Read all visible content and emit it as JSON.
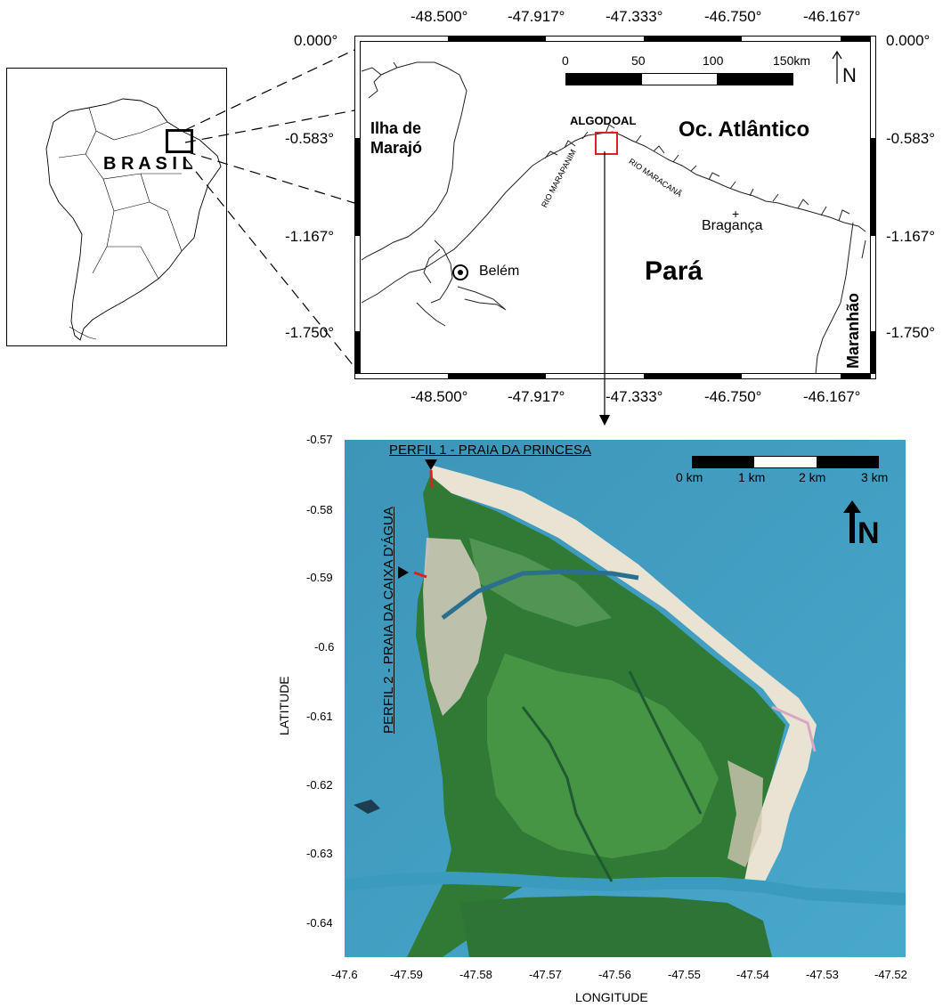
{
  "inset_map": {
    "country_label": "B R A S I L"
  },
  "regional_map": {
    "top_lon_labels": [
      "-48.500°",
      "-47.917°",
      "-47.333°",
      "-46.750°",
      "-46.167°"
    ],
    "bottom_lon_labels": [
      "-48.500°",
      "-47.917°",
      "-47.333°",
      "-46.750°",
      "-46.167°"
    ],
    "left_lat_labels": [
      "0.000°",
      "-0.583°",
      "-1.167°",
      "-1.750°"
    ],
    "right_lat_labels": [
      "0.000°",
      "-0.583°",
      "-1.167°",
      "-1.750°"
    ],
    "scale_labels": [
      "0",
      "50",
      "100",
      "150km"
    ],
    "north_label": "N",
    "place_labels": {
      "marajo_line1": "Ilha de",
      "marajo_line2": "Marajó",
      "algodoal": "ALGODOAL",
      "ocean": "Oc. Atlântico",
      "rio_marapanim": "RIO MARAPANIM",
      "rio_maracana": "RIO MARACANÃ",
      "braganca_marker": "+",
      "braganca": "Bragança",
      "belem": "Belém",
      "para": "Pará",
      "maranhao": "Maranhão"
    }
  },
  "detail_map": {
    "lat_ticks": [
      "-0.57",
      "-0.58",
      "-0.59",
      "-0.6",
      "-0.61",
      "-0.62",
      "-0.63",
      "-0.64"
    ],
    "lon_ticks": [
      "-47.6",
      "-47.59",
      "-47.58",
      "-47.57",
      "-47.56",
      "-47.55",
      "-47.54",
      "-47.53",
      "-47.52"
    ],
    "xlabel": "LONGITUDE",
    "ylabel": "LATITUDE",
    "perfil1": "PERFIL 1 - PRAIA DA PRINCESA",
    "perfil2": "PERFIL 2 - PRAIA DA CAIXA D'ÁGUA",
    "scale_labels": [
      "0 km",
      "1 km",
      "2 km",
      "3 km"
    ],
    "north_label": "N",
    "colors": {
      "water": "#3e9fc4",
      "forest": "#2f7a35",
      "sand": "#efe8d8",
      "profile": "#e02020"
    }
  }
}
